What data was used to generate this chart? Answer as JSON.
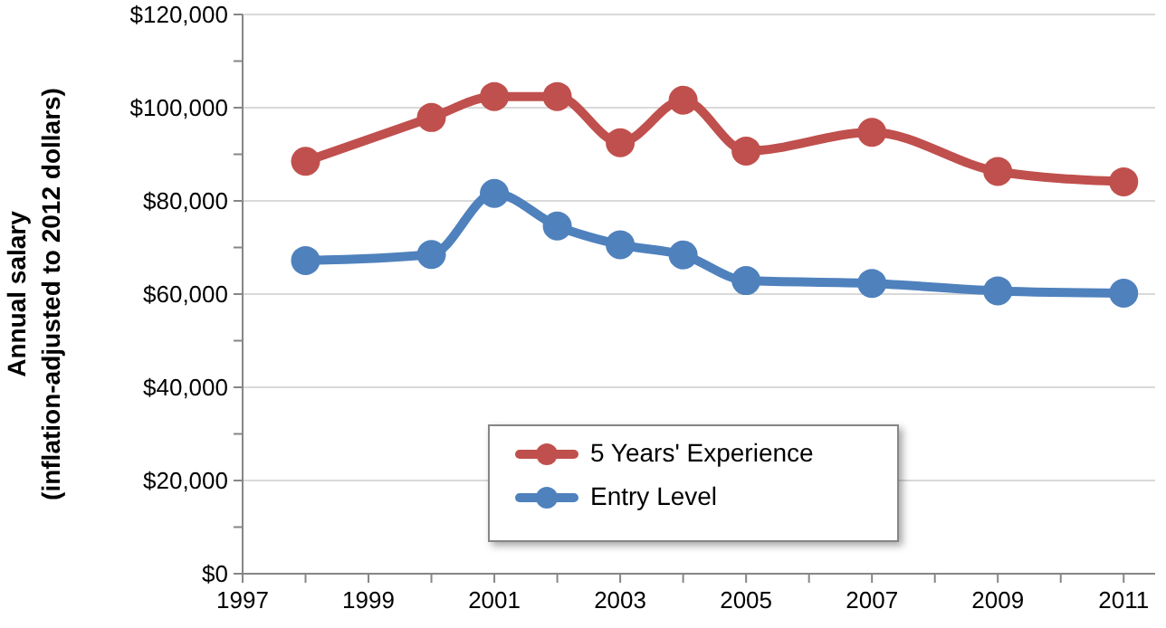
{
  "chart_data": {
    "type": "line",
    "ylabel": "Annual salary\n(inflation-adjusted to 2012 dollars)",
    "xlim": [
      1997,
      2011.5
    ],
    "xticks": [
      1997,
      {
        "value": 1998,
        "label": null
      },
      1999,
      {
        "value": 2000,
        "label": null
      },
      2001,
      {
        "value": 2002,
        "label": null
      },
      2003,
      {
        "value": 2004,
        "label": null
      },
      2005,
      {
        "value": 2006,
        "label": null
      },
      2007,
      {
        "value": 2008,
        "label": null
      },
      2009,
      {
        "value": 2010,
        "label": null
      },
      2011
    ],
    "ylim": [
      0,
      120000
    ],
    "yticks": [
      {
        "value": 0,
        "label": "$0"
      },
      {
        "value": 10000,
        "label": null
      },
      {
        "value": 20000,
        "label": "$20,000"
      },
      {
        "value": 30000,
        "label": null
      },
      {
        "value": 40000,
        "label": "$40,000"
      },
      {
        "value": 50000,
        "label": null
      },
      {
        "value": 60000,
        "label": "$60,000"
      },
      {
        "value": 70000,
        "label": null
      },
      {
        "value": 80000,
        "label": "$80,000"
      },
      {
        "value": 90000,
        "label": null
      },
      {
        "value": 100000,
        "label": "$100,000"
      },
      {
        "value": 110000,
        "label": null
      },
      {
        "value": 120000,
        "label": "$120,000"
      }
    ],
    "x": [
      1998,
      2000,
      2001,
      2002,
      2003,
      2004,
      2005,
      2007,
      2009,
      2011
    ],
    "series": [
      {
        "name": "5 Years' Experience",
        "color": "#c0504d",
        "values": [
          88500,
          97900,
          102400,
          102400,
          92500,
          101600,
          90700,
          94700,
          86300,
          84100
        ]
      },
      {
        "name": "Entry Level",
        "color": "#4f81bd",
        "values": [
          67200,
          68500,
          81600,
          74600,
          70600,
          68400,
          62900,
          62300,
          60700,
          60200
        ]
      }
    ],
    "grid": "y",
    "legend": "bottom",
    "marker": "circle",
    "line_style": "solid"
  }
}
